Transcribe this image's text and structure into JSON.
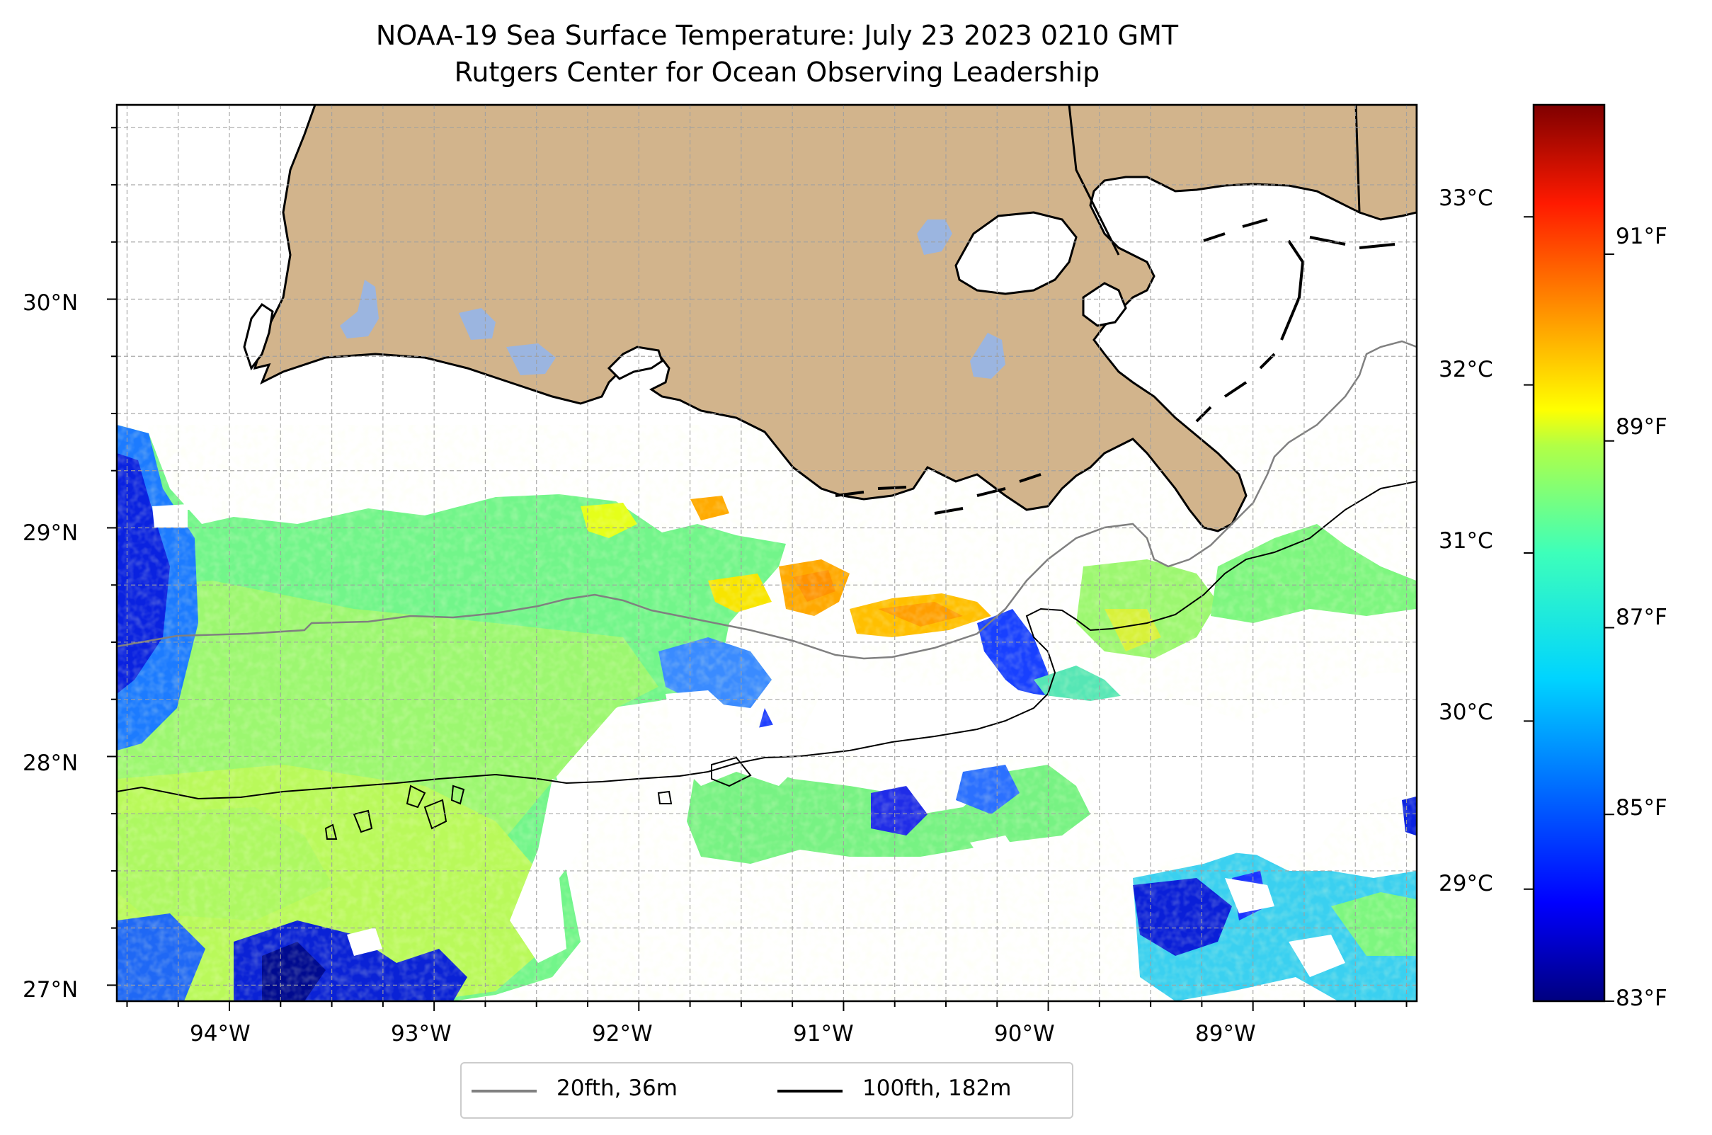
{
  "title": "NOAA-19 Sea Surface Temperature: July 23 2023 0210 GMT",
  "subtitle": "Rutgers Center for Ocean Observing Leadership",
  "map": {
    "lon_range": [
      -94.55,
      -88.2
    ],
    "lat_range": [
      26.93,
      30.85
    ],
    "lon_ticks": [
      "94°W",
      "93°W",
      "92°W",
      "91°W",
      "90°W",
      "89°W"
    ],
    "lat_ticks": [
      "30°N",
      "29°N",
      "28°N",
      "27°N"
    ],
    "land_color": "#d2b48c",
    "lake_color": "#9bb5e0"
  },
  "colorbar": {
    "colormap": "jet",
    "celsius_labels": [
      "33°C",
      "32°C",
      "31°C",
      "30°C",
      "29°C"
    ],
    "fahrenheit_labels": [
      "91°F",
      "89°F",
      "87°F",
      "85°F",
      "83°F"
    ],
    "range_f": [
      83,
      92.6
    ]
  },
  "legend": {
    "items": [
      {
        "label": "20fth, 36m",
        "color": "#808080"
      },
      {
        "label": "100fth, 182m",
        "color": "#000000"
      }
    ]
  },
  "chart_data": {
    "type": "heatmap",
    "title": "NOAA-19 Sea Surface Temperature: July 23 2023 0210 GMT",
    "subtitle": "Rutgers Center for Ocean Observing Leadership",
    "x_ticks": [
      "94°W",
      "93°W",
      "92°W",
      "91°W",
      "90°W",
      "89°W"
    ],
    "y_ticks": [
      "30°N",
      "29°N",
      "28°N",
      "27°N"
    ],
    "colorbar_ticks_c": [
      33,
      32,
      31,
      30,
      29
    ],
    "colorbar_ticks_f": [
      91,
      89,
      87,
      85,
      83
    ],
    "grid": true,
    "legend_position": "bottom-center"
  }
}
